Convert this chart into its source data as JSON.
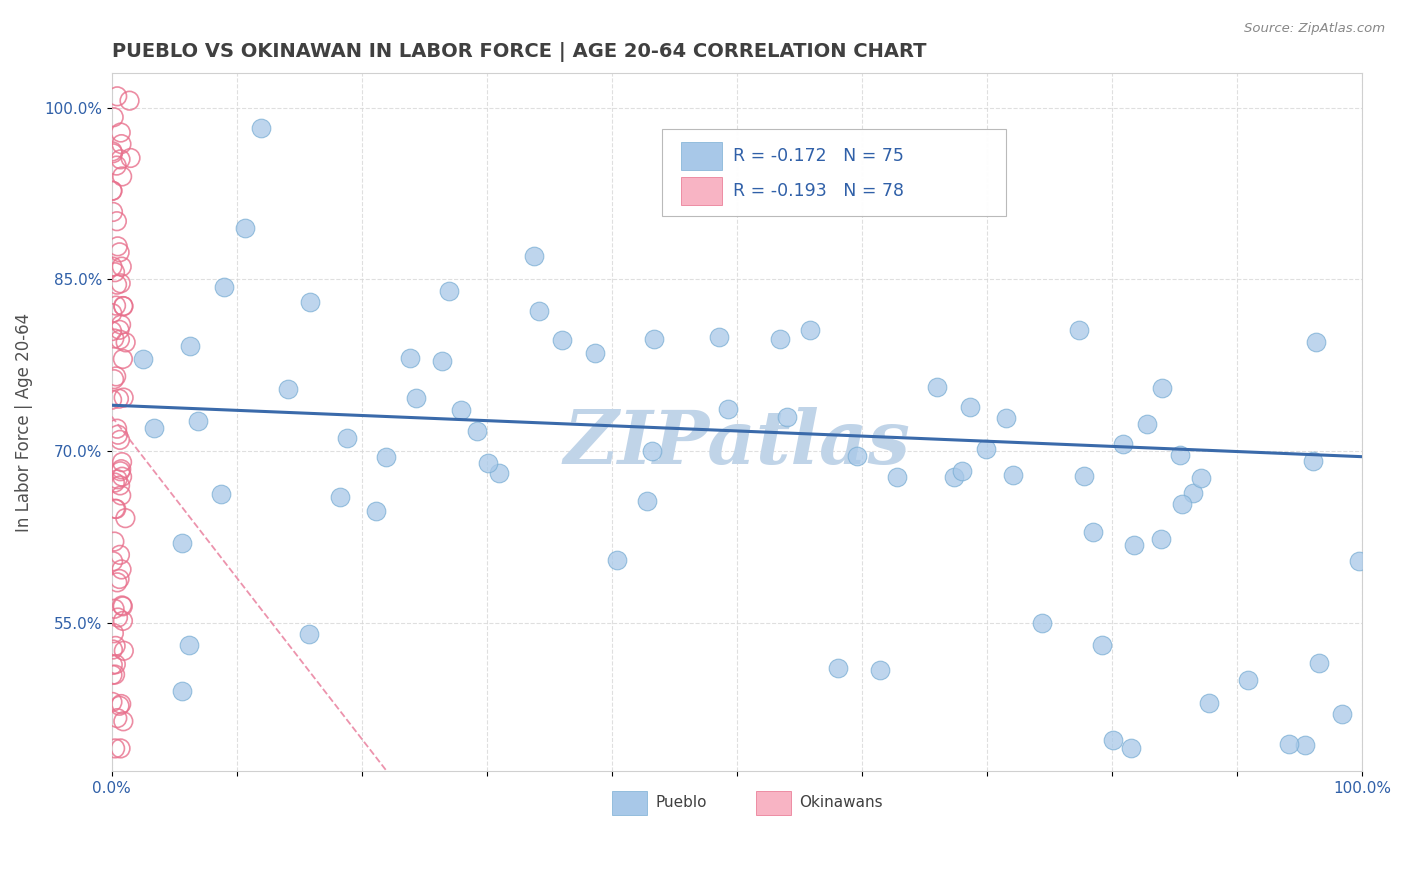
{
  "title": "PUEBLO VS OKINAWAN IN LABOR FORCE | AGE 20-64 CORRELATION CHART",
  "source": "Source: ZipAtlas.com",
  "ylabel": "In Labor Force | Age 20-64",
  "xlim": [
    0.0,
    1.0
  ],
  "ylim": [
    0.42,
    1.03
  ],
  "y_ticks": [
    0.55,
    0.7,
    0.85,
    1.0
  ],
  "y_tick_labels": [
    "55.0%",
    "70.0%",
    "85.0%",
    "100.0%"
  ],
  "pueblo_color": "#a8c8e8",
  "pueblo_edge_color": "#7aaed4",
  "okinawan_color": "#f8b4c4",
  "okinawan_edge_color": "#e8708c",
  "pueblo_line_color": "#3a6aaa",
  "okinawan_line_color": "#e87898",
  "pueblo_R": -0.172,
  "pueblo_N": 75,
  "okinawan_R": -0.193,
  "okinawan_N": 78,
  "watermark": "ZIPatlas",
  "watermark_color": "#c0d4e8",
  "background_color": "#ffffff",
  "grid_color": "#d8d8d8",
  "title_color": "#404040",
  "axis_label_color": "#505050",
  "tick_color": "#3060a8",
  "blue_trend_start_y": 0.74,
  "blue_trend_end_y": 0.695,
  "pink_trend_start_y": 0.73,
  "pink_trend_end_x": 0.22,
  "pink_trend_end_y": 0.42
}
